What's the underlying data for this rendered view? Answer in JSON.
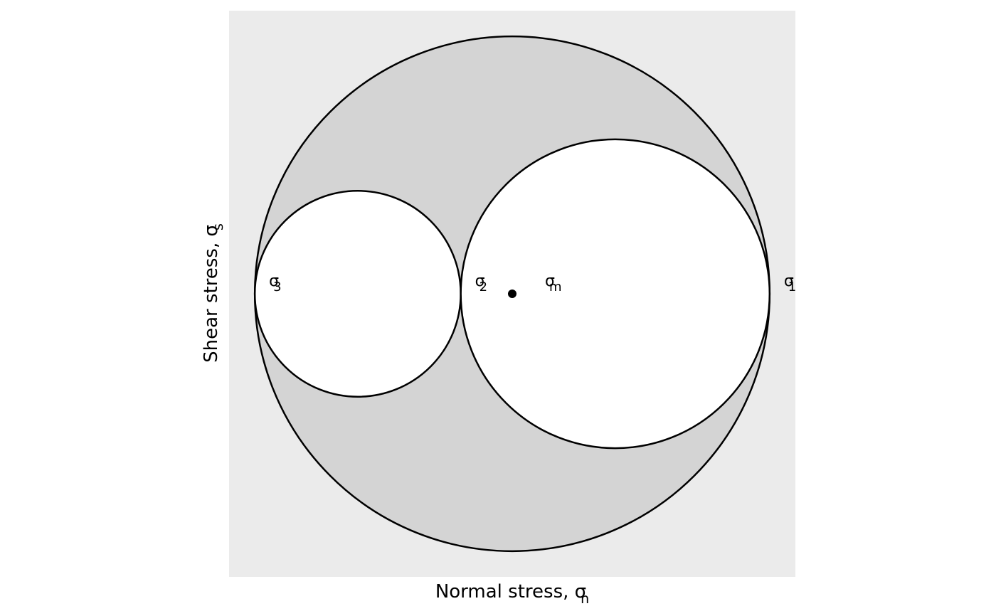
{
  "chart_data": {
    "type": "mohr-circle",
    "principal_stresses": [
      {
        "key": "sigma1",
        "label": "σ",
        "sub": "1",
        "value": 10
      },
      {
        "key": "sigma2",
        "label": "σ",
        "sub": "2",
        "value": 4
      },
      {
        "key": "sigma3",
        "label": "σ",
        "sub": "3",
        "value": 0
      }
    ],
    "mean_stress": {
      "label": "σ",
      "sub": "m",
      "value": 5
    },
    "circles": [
      {
        "name": "sigma1-sigma3",
        "from": 0,
        "to": 10,
        "fill": "#d4d4d4"
      },
      {
        "name": "sigma3-sigma2",
        "from": 0,
        "to": 4,
        "fill": "#ffffff"
      },
      {
        "name": "sigma2-sigma1",
        "from": 4,
        "to": 10,
        "fill": "#ffffff"
      }
    ],
    "xlabel": {
      "text": "Normal stress, σ",
      "sub": "n"
    },
    "ylabel": {
      "text": "Shear stress, σ",
      "sub": "s"
    },
    "xlim": [
      -0.5,
      10.5
    ],
    "ylim": [
      -5.5,
      5.5
    ],
    "grid": false,
    "aspect": "equal",
    "panel_background": "#ebebeb"
  }
}
